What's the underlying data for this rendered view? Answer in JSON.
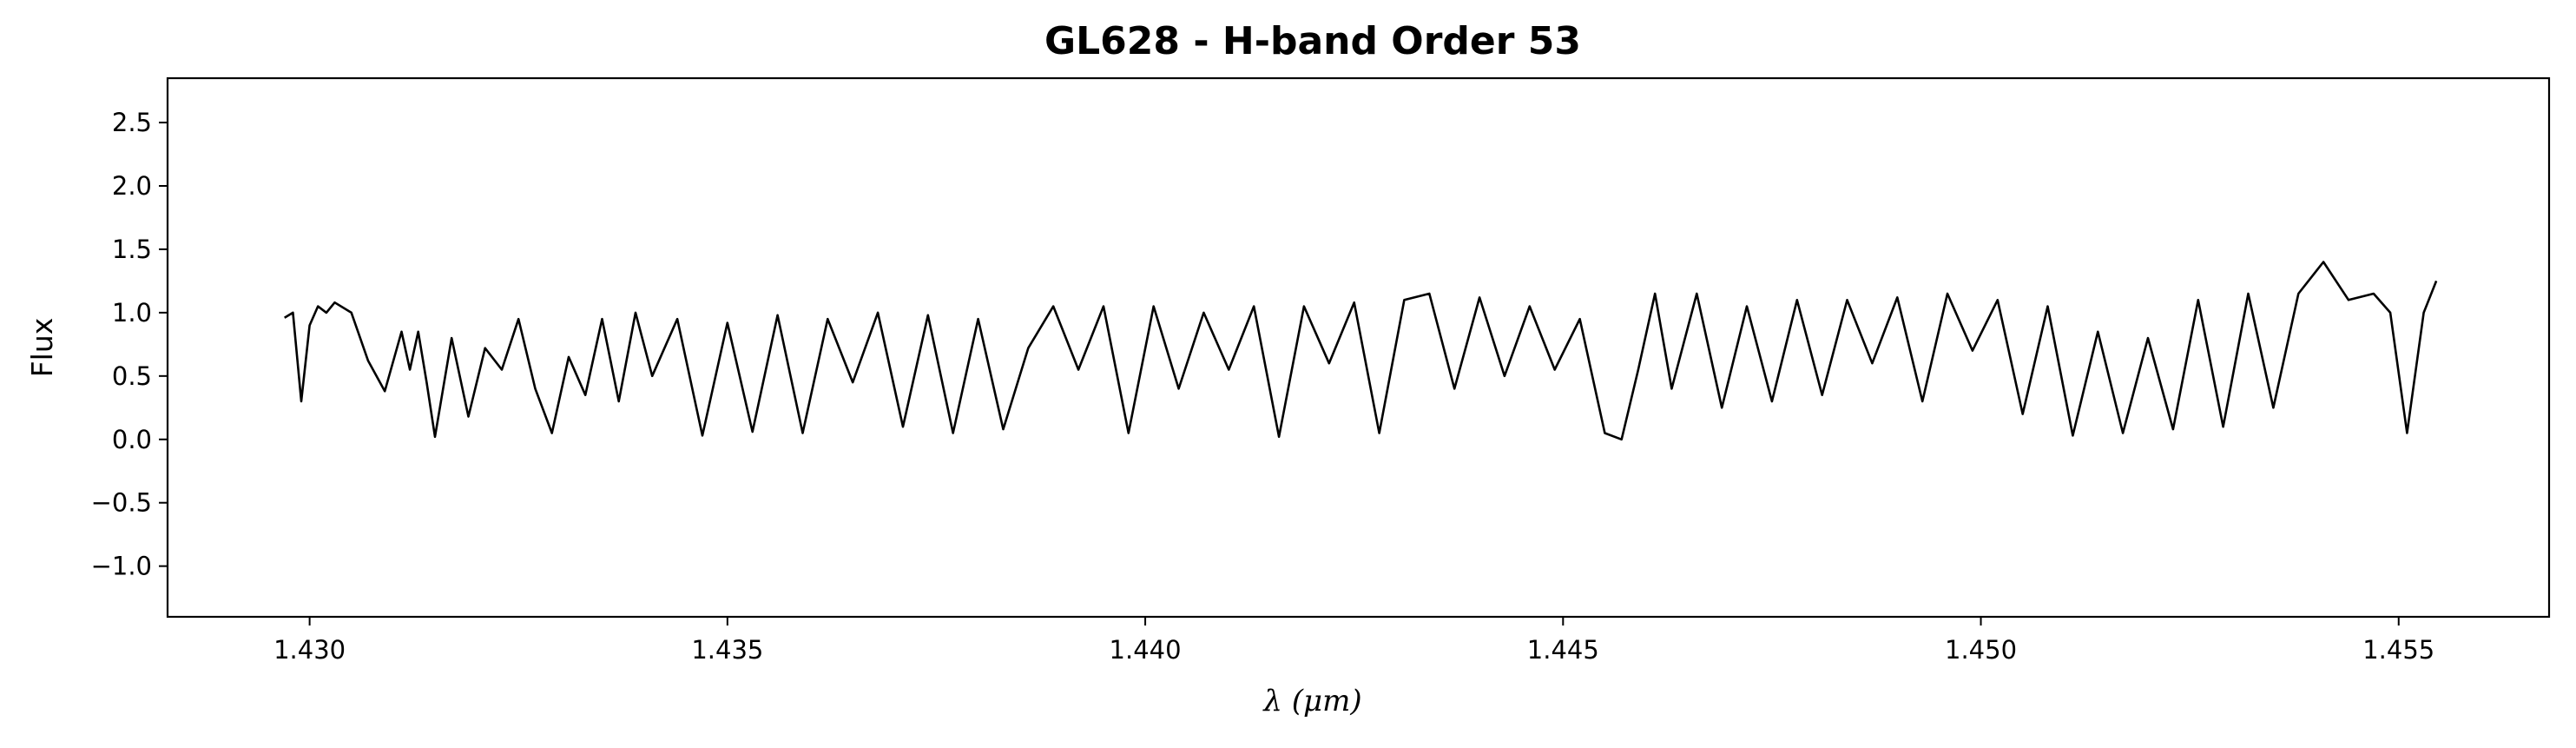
{
  "chart_data": {
    "type": "line",
    "title": "GL628 - H-band Order 53",
    "xlabel": "λ (μm)",
    "ylabel": "Flux",
    "xlim": [
      1.4283,
      1.4568
    ],
    "ylim": [
      -1.4,
      2.85
    ],
    "x_ticks": [
      "1.430",
      "1.435",
      "1.440",
      "1.445",
      "1.450",
      "1.455"
    ],
    "x_tick_values": [
      1.43,
      1.435,
      1.44,
      1.445,
      1.45,
      1.455
    ],
    "y_ticks": [
      "−1.0",
      "−0.5",
      "0.0",
      "0.5",
      "1.0",
      "1.5",
      "2.0",
      "2.5"
    ],
    "y_tick_values": [
      -1.0,
      -0.5,
      0.0,
      0.5,
      1.0,
      1.5,
      2.0,
      2.5
    ],
    "grid": false,
    "line_color": "#000000",
    "series": [
      {
        "x": [
          1.4297,
          1.4298,
          1.4299,
          1.43,
          1.4301,
          1.4302,
          1.4303,
          1.4305,
          1.4307,
          1.4309,
          1.4311,
          1.4312,
          1.4313,
          1.4314,
          1.4315,
          1.4317,
          1.4319,
          1.4321,
          1.4323,
          1.4325,
          1.4327,
          1.4329,
          1.4331,
          1.4333,
          1.4335,
          1.4337,
          1.4339,
          1.4341,
          1.4344,
          1.4347,
          1.435,
          1.4353,
          1.4356,
          1.4359,
          1.4362,
          1.4365,
          1.4368,
          1.4371,
          1.4374,
          1.4377,
          1.438,
          1.4383,
          1.4386,
          1.4389,
          1.4392,
          1.4395,
          1.4398,
          1.4401,
          1.4404,
          1.4407,
          1.441,
          1.4413,
          1.4416,
          1.4419,
          1.4422,
          1.4425,
          1.4428,
          1.4431,
          1.4434,
          1.4437,
          1.444,
          1.4443,
          1.4446,
          1.4449,
          1.4452,
          1.4455,
          1.4457,
          1.4459,
          1.4461,
          1.4463,
          1.4466,
          1.4469,
          1.4472,
          1.4475,
          1.4478,
          1.4481,
          1.4484,
          1.4487,
          1.449,
          1.4493,
          1.4496,
          1.4499,
          1.4502,
          1.4505,
          1.4508,
          1.4511,
          1.4514,
          1.4517,
          1.452,
          1.4523,
          1.4526,
          1.4529,
          1.4532,
          1.4535,
          1.4538,
          1.4541,
          1.4544,
          1.4547,
          1.4549,
          1.4551,
          1.4553,
          1.45545
        ],
        "y": [
          0.96,
          1.0,
          0.3,
          0.9,
          1.05,
          1.0,
          1.08,
          1.0,
          0.62,
          0.38,
          0.85,
          0.55,
          0.85,
          0.45,
          0.02,
          0.8,
          0.18,
          0.72,
          0.55,
          0.95,
          0.4,
          0.05,
          0.65,
          0.35,
          0.95,
          0.3,
          1.0,
          0.5,
          0.95,
          0.03,
          0.92,
          0.06,
          0.98,
          0.05,
          0.95,
          0.45,
          1.0,
          0.1,
          0.98,
          0.05,
          0.95,
          0.08,
          0.72,
          1.05,
          0.55,
          1.05,
          0.05,
          1.05,
          0.4,
          1.0,
          0.55,
          1.05,
          0.02,
          1.05,
          0.6,
          1.08,
          0.05,
          1.1,
          1.15,
          0.4,
          1.12,
          0.5,
          1.05,
          0.55,
          0.95,
          0.05,
          0.0,
          0.55,
          1.15,
          0.4,
          1.15,
          0.25,
          1.05,
          0.3,
          1.1,
          0.35,
          1.1,
          0.6,
          1.12,
          0.3,
          1.15,
          0.7,
          1.1,
          0.2,
          1.05,
          0.03,
          0.85,
          0.05,
          0.8,
          0.08,
          1.1,
          0.1,
          1.15,
          0.25,
          1.15,
          1.4,
          1.1,
          1.15,
          1.0,
          0.05,
          1.0,
          1.25
        ]
      }
    ]
  }
}
